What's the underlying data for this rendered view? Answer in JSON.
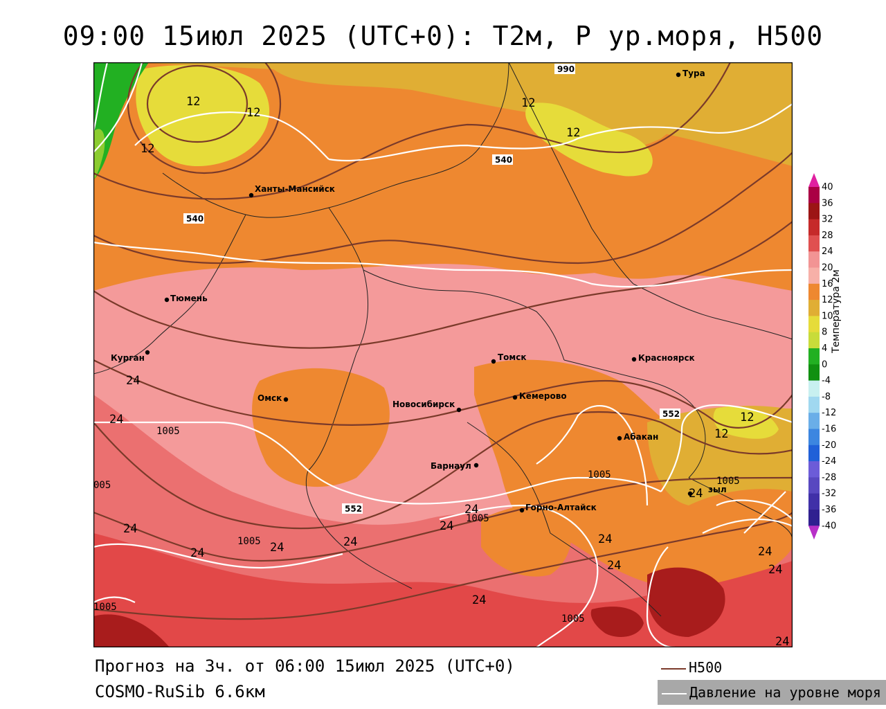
{
  "title": "09:00 15июл 2025 (UTC+0): T2м, P ур.моря, H500",
  "colors": {
    "green": "#22b022",
    "yellow": "#e6dc3a",
    "gold": "#e0ae34",
    "orange": "#ee8830",
    "pink": "#f49a9a",
    "salmon": "#eb7070",
    "red": "#e24848",
    "darkred": "#a81c1c",
    "h500_line": "#7a3a2a",
    "slp_line": "#ffffff"
  },
  "cities": [
    {
      "name": "Тура"
    },
    {
      "name": "Ханты-Мансийск"
    },
    {
      "name": "Тюмень"
    },
    {
      "name": "Курган"
    },
    {
      "name": "Омск"
    },
    {
      "name": "Новосибирск"
    },
    {
      "name": "Томск"
    },
    {
      "name": "Кемерово"
    },
    {
      "name": "Красноярск"
    },
    {
      "name": "Абакан"
    },
    {
      "name": "Барнаул"
    },
    {
      "name": "Горно-Алтайск"
    },
    {
      "name": "Кызыл",
      "visible_text": "зыл"
    }
  ],
  "isotherm_labels": [
    "12",
    "12",
    "12",
    "12",
    "12",
    "12",
    "12",
    "24",
    "24",
    "24",
    "24",
    "24",
    "24",
    "24",
    "24",
    "24",
    "24",
    "24",
    "24",
    "24",
    "24",
    "24",
    "24"
  ],
  "h500_labels": [
    "990",
    "540",
    "540",
    "552",
    "552"
  ],
  "slp_labels": [
    "1005",
    "1005",
    "1005",
    "1005",
    "1005",
    "1005",
    "1005",
    "005"
  ],
  "colorbar": {
    "title": "Температура 2м",
    "ticks": [
      "40",
      "36",
      "32",
      "28",
      "24",
      "20",
      "16",
      "12",
      "10",
      "8",
      "4",
      "0",
      "-4",
      "-8",
      "-12",
      "-16",
      "-20",
      "-24",
      "-28",
      "-32",
      "-36",
      "-40"
    ],
    "colors": [
      "#aa0044",
      "#9c1515",
      "#c62a2a",
      "#e05050",
      "#f29494",
      "#f7b0a8",
      "#ee8830",
      "#e0ae34",
      "#e6dc3a",
      "#c8dc3a",
      "#22b022",
      "#109010",
      "#c8f0f0",
      "#a0d8f0",
      "#6aaee8",
      "#3c86e0",
      "#2060d8",
      "#6c5cd8",
      "#5848c0",
      "#4030a8",
      "#302090",
      "#281878"
    ]
  },
  "footer": {
    "line1": "Прогноз на 3ч. от 06:00 15июл 2025 (UTC+0)",
    "line2": "COSMO-RuSib 6.6км"
  },
  "legend": {
    "h500": "H500",
    "slp": "Давление на уровне моря"
  }
}
